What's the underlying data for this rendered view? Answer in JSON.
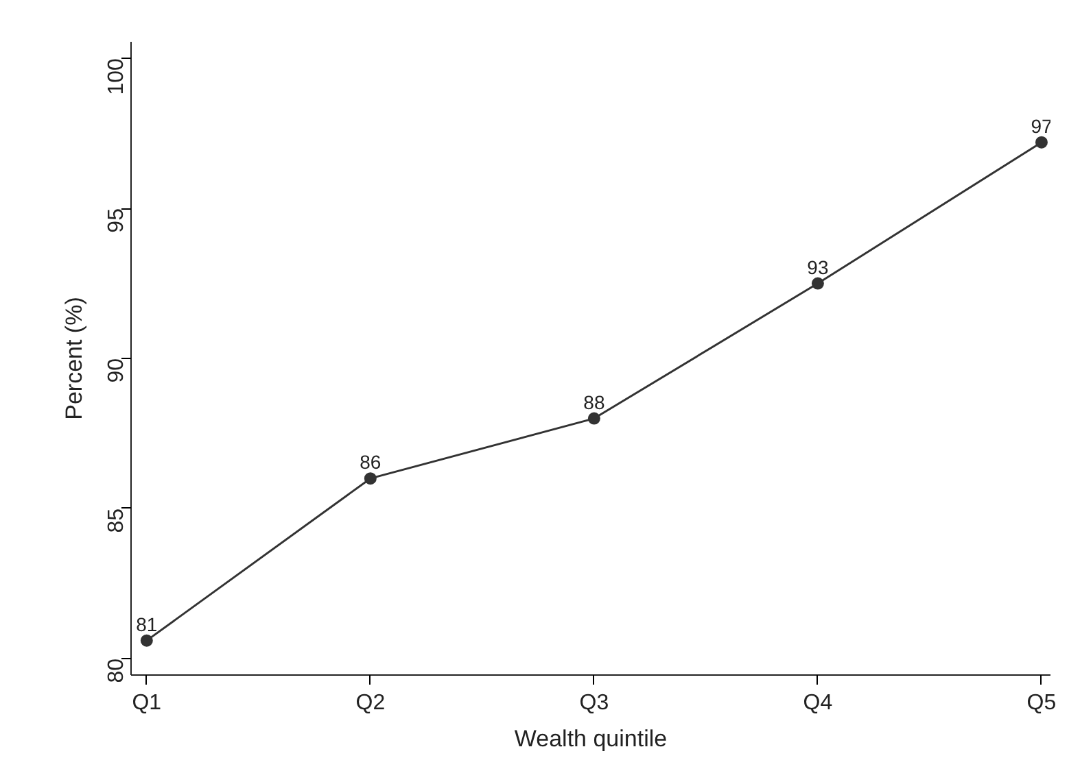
{
  "chart_data": {
    "type": "line",
    "xlabel": "Wealth quintile",
    "ylabel": "Percent (%)",
    "categories": [
      "Q1",
      "Q2",
      "Q3",
      "Q4",
      "Q5"
    ],
    "series": [
      {
        "color": "#333333",
        "values": [
          80.6,
          86.0,
          88.0,
          92.5,
          97.2
        ],
        "value_labels": [
          "81",
          "86",
          "88",
          "93",
          "97"
        ]
      }
    ],
    "ylim": [
      79.45,
      100.55
    ],
    "yticks": [
      80,
      85,
      90,
      95,
      100
    ],
    "grid": false,
    "marker": "circle",
    "line_style": "solid"
  }
}
